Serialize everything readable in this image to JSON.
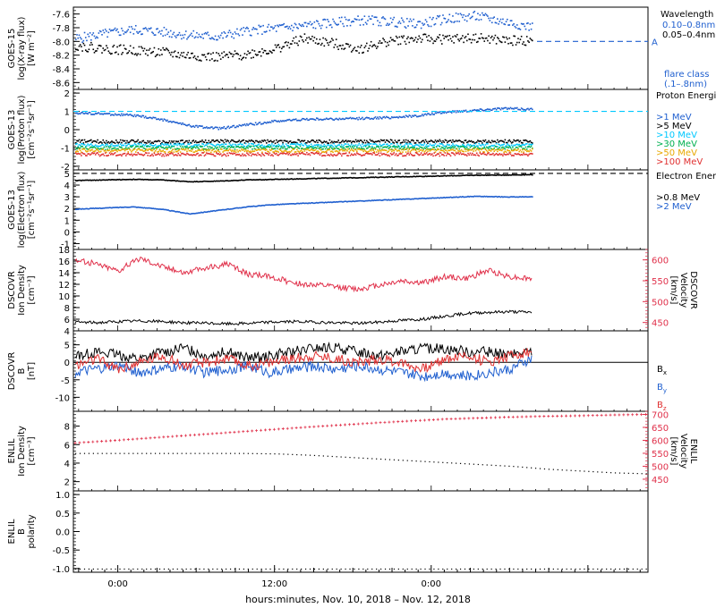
{
  "footer_label": "hours:minutes, Nov. 10, 2018 – Nov. 12, 2018",
  "colors": {
    "black": "#000000",
    "blue": "#1f5fcf",
    "cyan": "#00c8ff",
    "green": "#00b050",
    "orange": "#e8a800",
    "red": "#e03030",
    "red_scale": "#e0304a"
  },
  "chart_data": [
    {
      "type": "scatter",
      "ylabel": [
        "GOES-15",
        "log(X-ray flux)",
        "[W m⁻²]"
      ],
      "left_ticks": [
        "-7.6",
        "-7.8",
        "-8.0",
        "-8.2",
        "-8.4",
        "-8.6"
      ],
      "ylim": [
        -8.7,
        -7.5
      ],
      "legend_title": "Wavelength",
      "series": [
        {
          "name": "0.10–0.8nm",
          "color": "#1f5fcf",
          "values": [
            -7.95,
            -7.88,
            -7.82,
            -7.85,
            -7.9,
            -7.92,
            -7.84,
            -7.8,
            -7.76,
            -7.72,
            -7.68,
            -7.7,
            -7.74,
            -7.66,
            -7.62,
            -7.7,
            -7.78
          ]
        },
        {
          "name": "0.05–0.4nm",
          "color": "#000000",
          "values": [
            -8.05,
            -8.1,
            -8.12,
            -8.15,
            -8.2,
            -8.22,
            -8.18,
            -8.1,
            -7.95,
            -8.02,
            -8.1,
            -7.98,
            -7.95,
            -7.96,
            -7.94,
            -7.98,
            -7.98
          ]
        }
      ],
      "threshold": {
        "value": -8.0,
        "label": "A"
      },
      "footnote": [
        "flare class",
        "(.1–.8nm)"
      ]
    },
    {
      "type": "scatter",
      "ylabel": [
        "GOES-13",
        "log(Proton flux)",
        "[cm⁻²s⁻¹sr⁻¹]"
      ],
      "left_ticks": [
        "2",
        "1",
        "0",
        "-1",
        "-2"
      ],
      "ylim": [
        -2.2,
        2.2
      ],
      "legend_title": "Proton Energies",
      "series": [
        {
          "name": ">1 MeV",
          "color": "#1f5fcf",
          "values": [
            0.95,
            0.9,
            0.82,
            0.6,
            0.25,
            0.1,
            0.3,
            0.5,
            0.6,
            0.62,
            0.65,
            0.7,
            0.8,
            1.0,
            1.1,
            1.2,
            1.15
          ]
        },
        {
          "name": ">5 MeV",
          "color": "#000000",
          "values": [
            -0.6,
            -0.62,
            -0.6,
            -0.65,
            -0.62,
            -0.6,
            -0.6,
            -0.62,
            -0.6,
            -0.62,
            -0.6,
            -0.6,
            -0.62,
            -0.6,
            -0.62,
            -0.6,
            -0.62
          ]
        },
        {
          "name": ">10 MeV",
          "color": "#00c8ff",
          "values": [
            -0.8,
            -0.82,
            -0.8,
            -0.82,
            -0.8,
            -0.82,
            -0.8,
            -0.82,
            -0.8,
            -0.82,
            -0.8,
            -0.82,
            -0.8,
            -0.82,
            -0.8,
            -0.82,
            -0.8
          ]
        },
        {
          "name": ">30 MeV",
          "color": "#00b050",
          "values": [
            -0.95,
            -0.97,
            -0.95,
            -0.97,
            -0.95,
            -0.97,
            -0.95,
            -0.97,
            -0.95,
            -0.97,
            -0.95,
            -0.97,
            -0.95,
            -0.97,
            -0.95,
            -0.97,
            -0.95
          ]
        },
        {
          "name": ">50 MeV",
          "color": "#e8a800",
          "values": [
            -1.1,
            -1.12,
            -1.1,
            -1.12,
            -1.1,
            -1.12,
            -1.1,
            -1.12,
            -1.1,
            -1.12,
            -1.1,
            -1.12,
            -1.1,
            -1.12,
            -1.1,
            -1.12,
            -1.1
          ]
        },
        {
          "name": ">100 MeV",
          "color": "#e03030",
          "values": [
            -1.3,
            -1.32,
            -1.3,
            -1.32,
            -1.3,
            -1.32,
            -1.3,
            -1.32,
            -1.3,
            -1.32,
            -1.3,
            -1.32,
            -1.3,
            -1.32,
            -1.3,
            -1.32,
            -1.3
          ]
        }
      ],
      "threshold": {
        "value": 1.0
      }
    },
    {
      "type": "line",
      "ylabel": [
        "GOES-13",
        "log(Electron flux)",
        "[cm⁻²s⁻¹sr⁻¹]"
      ],
      "left_ticks": [
        "5",
        "4",
        "3",
        "2",
        "1",
        "0",
        "-1"
      ],
      "ylim": [
        -1.5,
        5.3
      ],
      "legend_title": "Electron Energies",
      "series": [
        {
          "name": ">0.8 MeV",
          "color": "#000000",
          "values": [
            4.45,
            4.5,
            4.55,
            4.5,
            4.35,
            4.4,
            4.5,
            4.55,
            4.6,
            4.65,
            4.7,
            4.75,
            4.8,
            4.85,
            4.9,
            4.92,
            4.95
          ]
        },
        {
          "name": ">2 MeV",
          "color": "#1f5fcf",
          "values": [
            2.0,
            2.1,
            2.2,
            2.0,
            1.6,
            1.9,
            2.2,
            2.4,
            2.5,
            2.6,
            2.7,
            2.8,
            2.9,
            3.0,
            3.1,
            3.05,
            3.05
          ]
        }
      ],
      "threshold": {
        "value": 5.0
      }
    },
    {
      "type": "line",
      "ylabel": [
        "DSCOVR",
        "Ion Density",
        "[cm⁻³]"
      ],
      "left_ticks": [
        "18",
        "16",
        "14",
        "12",
        "10",
        "8",
        "6",
        "4"
      ],
      "ylim": [
        4,
        18
      ],
      "rlabel": [
        "DSCOVR",
        "Velocity",
        "[km/s]"
      ],
      "right_ticks": [
        "600",
        "550",
        "500",
        "450"
      ],
      "rlim": [
        430,
        625
      ],
      "series": [
        {
          "name": "Velocity",
          "color": "#e0304a",
          "axis": "right",
          "values": [
            600,
            590,
            575,
            605,
            585,
            570,
            580,
            590,
            565,
            560,
            545,
            540,
            535,
            530,
            540,
            550,
            545,
            560,
            555,
            575,
            560,
            555
          ]
        },
        {
          "name": "Ion Density",
          "color": "#000000",
          "axis": "left",
          "values": [
            5.5,
            5.4,
            5.6,
            5.7,
            5.6,
            5.4,
            5.3,
            5.2,
            5.3,
            5.5,
            5.6,
            5.5,
            5.4,
            5.3,
            5.5,
            5.8,
            6.0,
            6.5,
            7.0,
            7.2,
            7.3,
            7.2
          ]
        }
      ]
    },
    {
      "type": "line",
      "ylabel": [
        "DSCOVR",
        "B",
        "[nT]"
      ],
      "left_ticks": [
        "5",
        "0",
        "-5",
        "-10"
      ],
      "ylim": [
        -14,
        9
      ],
      "legend_title": "",
      "series": [
        {
          "name": "B",
          "sub": "x",
          "color": "#000000",
          "values": [
            2,
            3,
            2,
            1,
            3,
            4,
            2,
            3,
            1,
            2,
            3,
            4,
            4,
            3,
            2,
            3,
            4,
            4,
            3,
            3,
            2,
            3
          ]
        },
        {
          "name": "B",
          "sub": "y",
          "color": "#1f5fcf",
          "values": [
            -3,
            -2,
            -1,
            -3,
            -2,
            -1,
            -3,
            -2,
            -1,
            -3,
            -2,
            -1,
            -2,
            -1,
            -2,
            -3,
            -4,
            -3,
            -4,
            -3,
            -2,
            1
          ]
        },
        {
          "name": "B",
          "sub": "z",
          "color": "#e03030",
          "values": [
            -1,
            1,
            -2,
            0,
            2,
            -1,
            0,
            1,
            -1,
            0,
            1,
            2,
            1,
            0,
            1,
            0,
            -2,
            1,
            2,
            0,
            2,
            3
          ]
        }
      ]
    },
    {
      "type": "line",
      "ylabel": [
        "ENLIL",
        "Ion Density",
        "[cm⁻³]"
      ],
      "left_ticks": [
        "8",
        "6",
        "4",
        "2"
      ],
      "ylim": [
        1,
        9.6
      ],
      "rlabel": [
        "ENLIL",
        "Velocity",
        "[km/s]"
      ],
      "right_ticks": [
        "700",
        "650",
        "600",
        "550",
        "500",
        "450"
      ],
      "rlim": [
        405,
        712
      ],
      "series": [
        {
          "name": "Velocity",
          "color": "#e0304a",
          "axis": "right",
          "values": [
            590,
            598,
            607,
            616,
            625,
            634,
            643,
            652,
            660,
            668,
            675,
            682,
            686,
            690,
            693,
            695,
            698,
            700
          ]
        },
        {
          "name": "Ion Density",
          "color": "#000000",
          "axis": "left",
          "values": [
            5.1,
            5.1,
            5.1,
            5.1,
            5.1,
            5.1,
            5.05,
            4.9,
            4.7,
            4.5,
            4.3,
            4.1,
            3.9,
            3.7,
            3.4,
            3.2,
            3.0,
            2.9
          ]
        }
      ]
    },
    {
      "type": "line",
      "ylabel": [
        "ENLIL",
        "B",
        "polarity"
      ],
      "left_ticks": [
        "1.0",
        "0.5",
        "0.0",
        "-0.5",
        "-1.0"
      ],
      "ylim": [
        -1.1,
        1.1
      ],
      "series": [
        {
          "name": "Polarity",
          "color": "#000000",
          "values": [
            -1,
            -1,
            -1,
            -1,
            -1,
            -1,
            -1,
            -1,
            -1,
            -1,
            -1,
            -1,
            -1,
            -1,
            -1,
            -1,
            -1,
            -1
          ]
        }
      ]
    }
  ],
  "x_axis": {
    "tick_labels": [
      "0:00",
      "12:00",
      "0:00"
    ]
  }
}
